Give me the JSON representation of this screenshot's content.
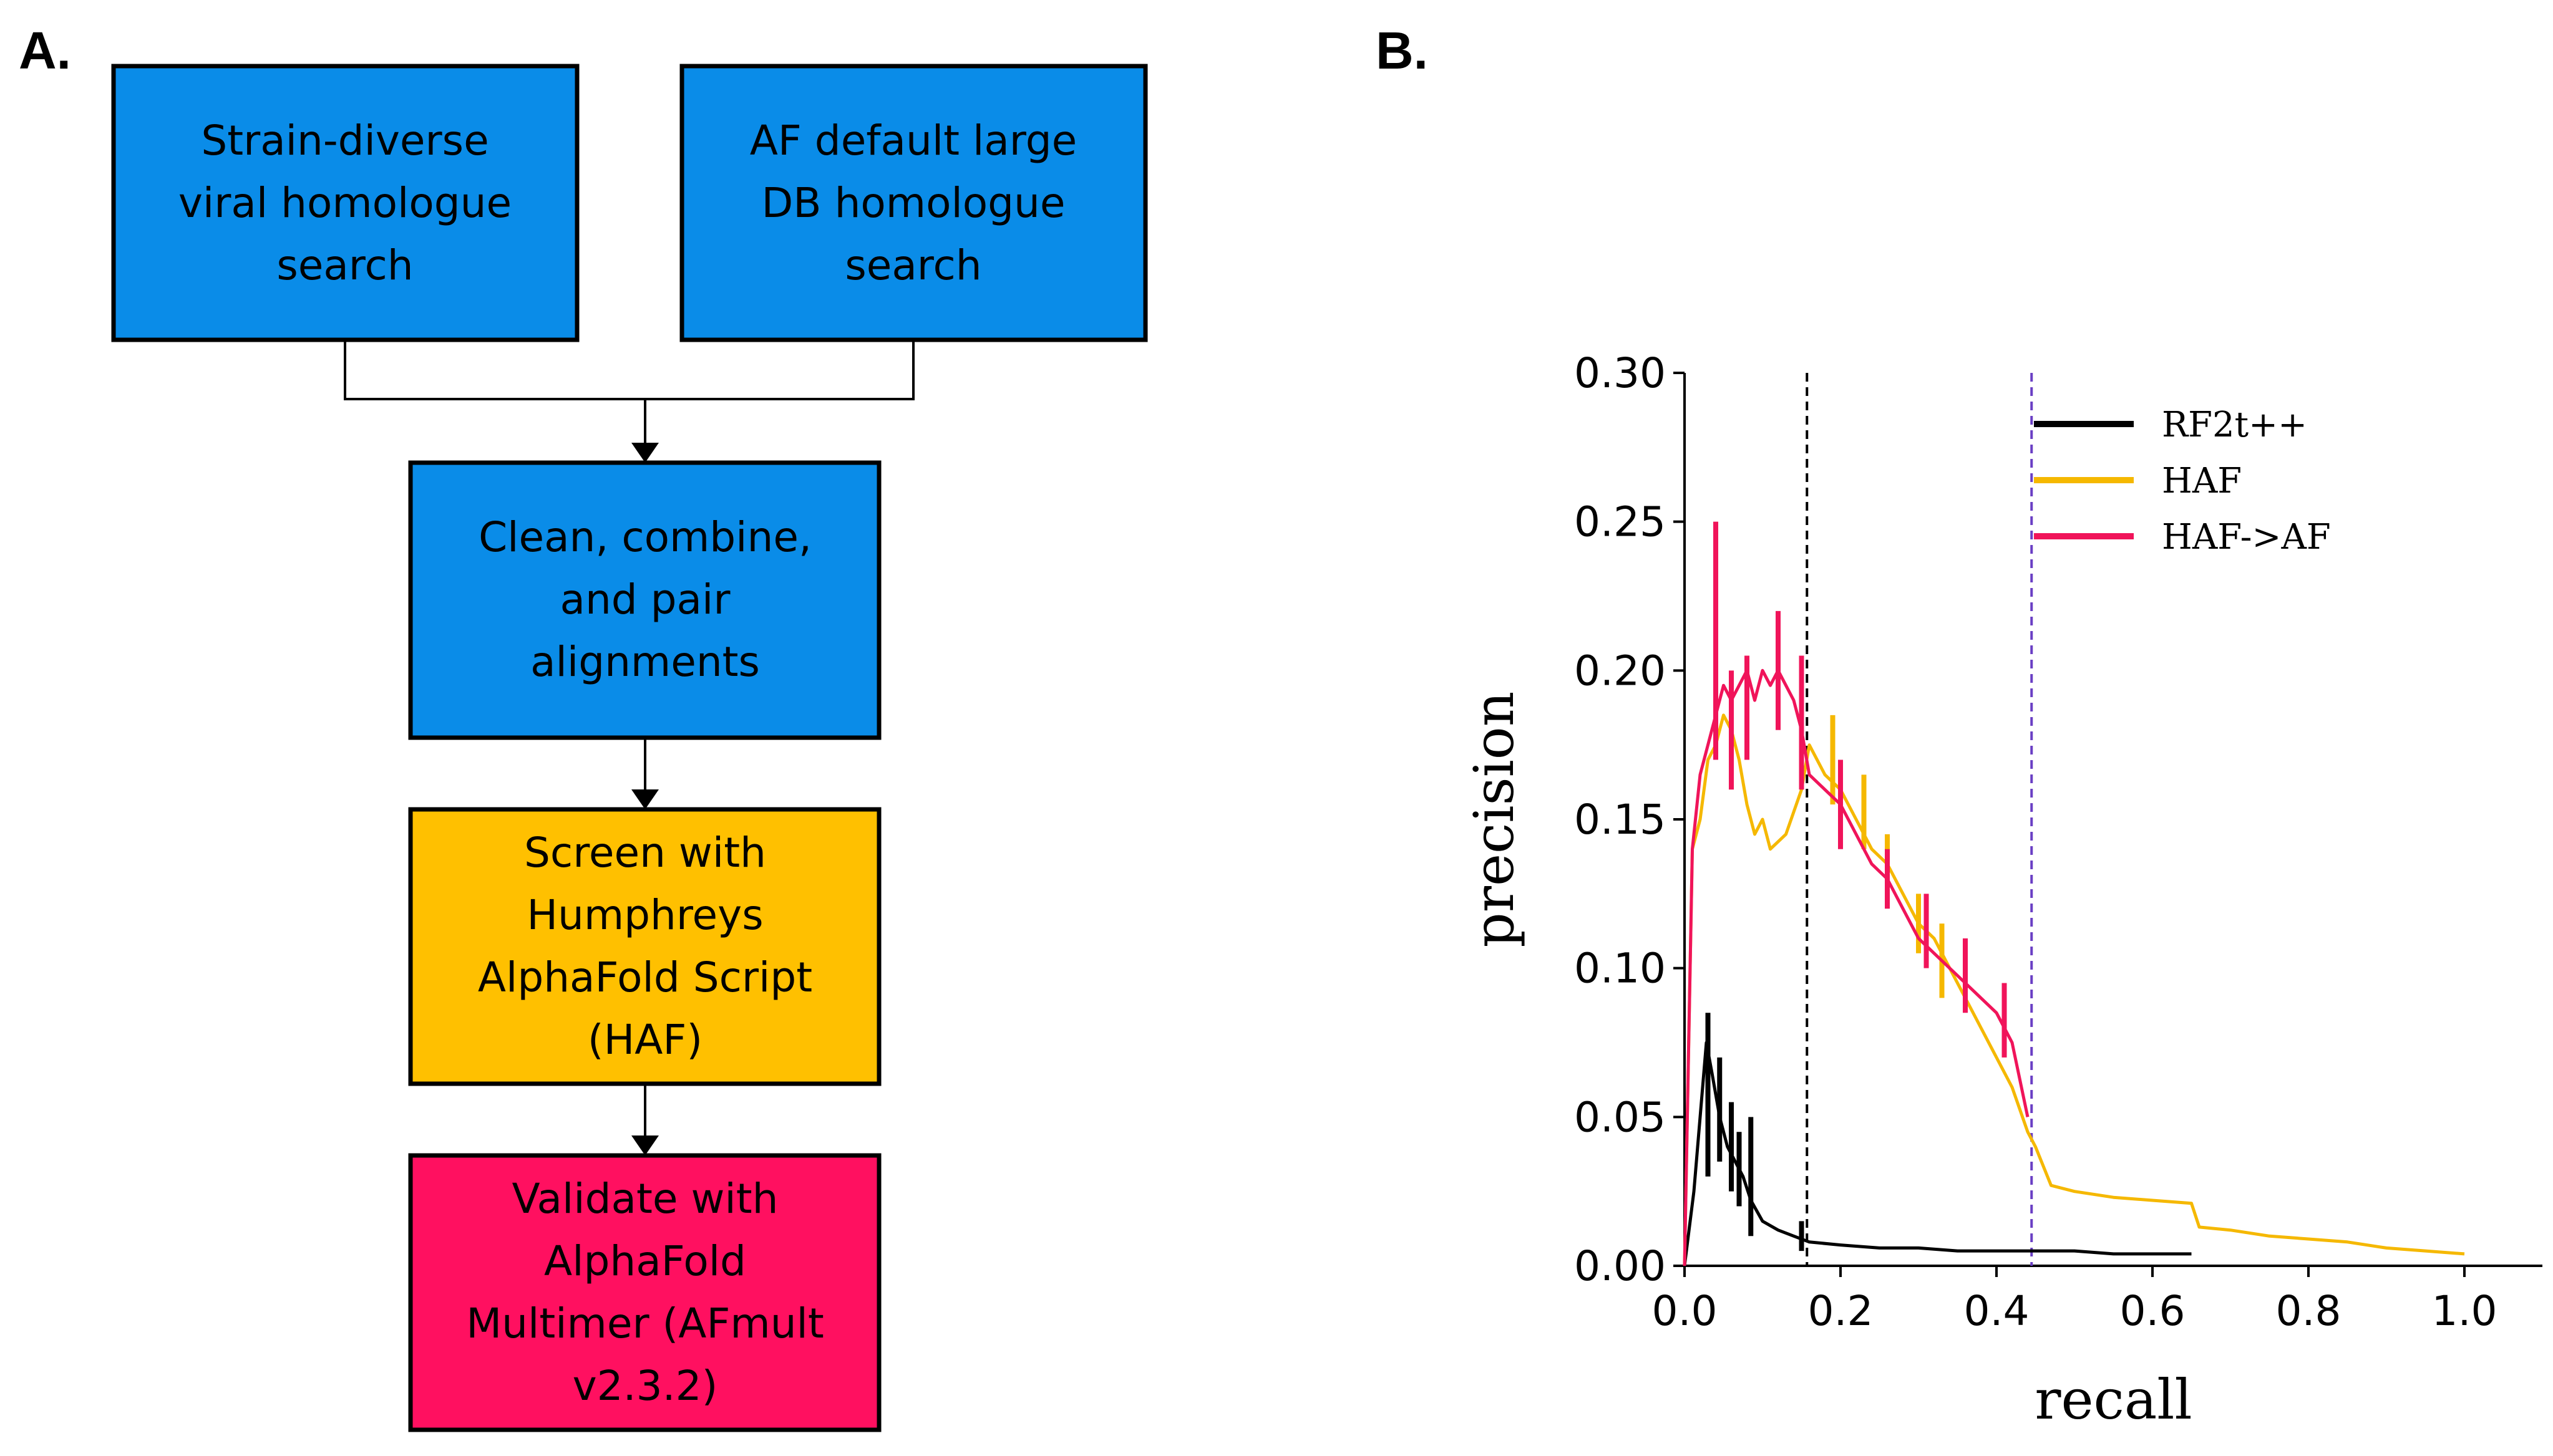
{
  "panels": {
    "a_label": "A.",
    "b_label": "B."
  },
  "flowchart": {
    "colors": {
      "blue": "#0a8ce8",
      "amber": "#ffc000",
      "pink": "#ff1060"
    },
    "boxes": {
      "strain_search": [
        "Strain-diverse",
        "viral  homologue",
        "search"
      ],
      "af_default_search": [
        "AF default large",
        "DB homologue",
        "search"
      ],
      "clean_combine": [
        "Clean, combine,",
        "and pair",
        "alignments"
      ],
      "screen_haf": [
        "Screen with",
        "Humphreys",
        "AlphaFold Script",
        "(HAF)"
      ],
      "validate_afmult": [
        "Validate with",
        "AlphaFold",
        "Multimer (AFmult",
        "v2.3.2)"
      ]
    }
  },
  "chart_data": {
    "type": "line",
    "xlabel": "recall",
    "ylabel": "precision",
    "xlim": [
      0.0,
      1.1
    ],
    "ylim": [
      0.0,
      0.3
    ],
    "xticks": [
      0.0,
      0.2,
      0.4,
      0.6,
      0.8,
      1.0
    ],
    "xtick_labels": [
      "0.0",
      "0.2",
      "0.4",
      "0.6",
      "0.8",
      "1.0"
    ],
    "yticks": [
      0.0,
      0.05,
      0.1,
      0.15,
      0.2,
      0.25,
      0.3
    ],
    "ytick_labels": [
      "0.00",
      "0.05",
      "0.10",
      "0.15",
      "0.20",
      "0.25",
      "0.30"
    ],
    "legend_position": "top-right",
    "vlines": [
      {
        "name": "vline-black",
        "x": 0.157,
        "color": "#000000"
      },
      {
        "name": "vline-purple",
        "x": 0.445,
        "color": "#6a3fc4"
      }
    ],
    "series": [
      {
        "name": "RF2t++",
        "color": "#000000",
        "points": [
          [
            0.0,
            0.0
          ],
          [
            0.012,
            0.025
          ],
          [
            0.02,
            0.05
          ],
          [
            0.028,
            0.075
          ],
          [
            0.035,
            0.065
          ],
          [
            0.045,
            0.05
          ],
          [
            0.055,
            0.04
          ],
          [
            0.065,
            0.035
          ],
          [
            0.075,
            0.03
          ],
          [
            0.085,
            0.022
          ],
          [
            0.1,
            0.015
          ],
          [
            0.12,
            0.012
          ],
          [
            0.14,
            0.01
          ],
          [
            0.16,
            0.008
          ],
          [
            0.2,
            0.007
          ],
          [
            0.25,
            0.006
          ],
          [
            0.3,
            0.006
          ],
          [
            0.35,
            0.005
          ],
          [
            0.4,
            0.005
          ],
          [
            0.45,
            0.005
          ],
          [
            0.5,
            0.005
          ],
          [
            0.55,
            0.004
          ],
          [
            0.6,
            0.004
          ],
          [
            0.65,
            0.004
          ]
        ],
        "error_bars": [
          [
            0.03,
            0.03,
            0.085
          ],
          [
            0.045,
            0.035,
            0.07
          ],
          [
            0.06,
            0.025,
            0.055
          ],
          [
            0.07,
            0.02,
            0.045
          ],
          [
            0.085,
            0.01,
            0.05
          ],
          [
            0.15,
            0.005,
            0.015
          ]
        ]
      },
      {
        "name": "HAF",
        "color": "#f5b800",
        "points": [
          [
            0.0,
            0.0
          ],
          [
            0.01,
            0.14
          ],
          [
            0.02,
            0.15
          ],
          [
            0.03,
            0.17
          ],
          [
            0.04,
            0.175
          ],
          [
            0.05,
            0.185
          ],
          [
            0.06,
            0.18
          ],
          [
            0.07,
            0.17
          ],
          [
            0.08,
            0.155
          ],
          [
            0.09,
            0.145
          ],
          [
            0.1,
            0.15
          ],
          [
            0.11,
            0.14
          ],
          [
            0.13,
            0.145
          ],
          [
            0.15,
            0.16
          ],
          [
            0.16,
            0.175
          ],
          [
            0.18,
            0.165
          ],
          [
            0.2,
            0.16
          ],
          [
            0.22,
            0.15
          ],
          [
            0.24,
            0.14
          ],
          [
            0.26,
            0.135
          ],
          [
            0.28,
            0.125
          ],
          [
            0.3,
            0.115
          ],
          [
            0.32,
            0.11
          ],
          [
            0.34,
            0.1
          ],
          [
            0.36,
            0.09
          ],
          [
            0.38,
            0.08
          ],
          [
            0.4,
            0.07
          ],
          [
            0.42,
            0.06
          ],
          [
            0.44,
            0.045
          ],
          [
            0.45,
            0.04
          ],
          [
            0.47,
            0.027
          ],
          [
            0.5,
            0.025
          ],
          [
            0.55,
            0.023
          ],
          [
            0.6,
            0.022
          ],
          [
            0.65,
            0.021
          ],
          [
            0.66,
            0.013
          ],
          [
            0.7,
            0.012
          ],
          [
            0.75,
            0.01
          ],
          [
            0.8,
            0.009
          ],
          [
            0.85,
            0.008
          ],
          [
            0.9,
            0.006
          ],
          [
            0.95,
            0.005
          ],
          [
            1.0,
            0.004
          ]
        ],
        "error_bars": [
          [
            0.19,
            0.155,
            0.185
          ],
          [
            0.23,
            0.14,
            0.165
          ],
          [
            0.26,
            0.125,
            0.145
          ],
          [
            0.3,
            0.105,
            0.125
          ],
          [
            0.33,
            0.09,
            0.115
          ]
        ]
      },
      {
        "name": "HAF->AF",
        "color": "#f0145a",
        "points": [
          [
            0.0,
            0.0
          ],
          [
            0.01,
            0.14
          ],
          [
            0.02,
            0.165
          ],
          [
            0.03,
            0.175
          ],
          [
            0.04,
            0.185
          ],
          [
            0.05,
            0.195
          ],
          [
            0.06,
            0.19
          ],
          [
            0.07,
            0.195
          ],
          [
            0.08,
            0.2
          ],
          [
            0.09,
            0.19
          ],
          [
            0.1,
            0.2
          ],
          [
            0.11,
            0.195
          ],
          [
            0.12,
            0.2
          ],
          [
            0.13,
            0.195
          ],
          [
            0.14,
            0.19
          ],
          [
            0.15,
            0.18
          ],
          [
            0.16,
            0.165
          ],
          [
            0.18,
            0.16
          ],
          [
            0.2,
            0.155
          ],
          [
            0.22,
            0.145
          ],
          [
            0.24,
            0.135
          ],
          [
            0.26,
            0.13
          ],
          [
            0.28,
            0.12
          ],
          [
            0.3,
            0.11
          ],
          [
            0.32,
            0.105
          ],
          [
            0.34,
            0.1
          ],
          [
            0.36,
            0.095
          ],
          [
            0.38,
            0.09
          ],
          [
            0.4,
            0.085
          ],
          [
            0.42,
            0.075
          ],
          [
            0.44,
            0.05
          ]
        ],
        "error_bars": [
          [
            0.04,
            0.17,
            0.25
          ],
          [
            0.06,
            0.16,
            0.2
          ],
          [
            0.08,
            0.17,
            0.205
          ],
          [
            0.12,
            0.18,
            0.22
          ],
          [
            0.15,
            0.16,
            0.205
          ],
          [
            0.2,
            0.14,
            0.17
          ],
          [
            0.26,
            0.12,
            0.14
          ],
          [
            0.31,
            0.1,
            0.125
          ],
          [
            0.36,
            0.085,
            0.11
          ],
          [
            0.41,
            0.07,
            0.095
          ]
        ]
      }
    ]
  }
}
